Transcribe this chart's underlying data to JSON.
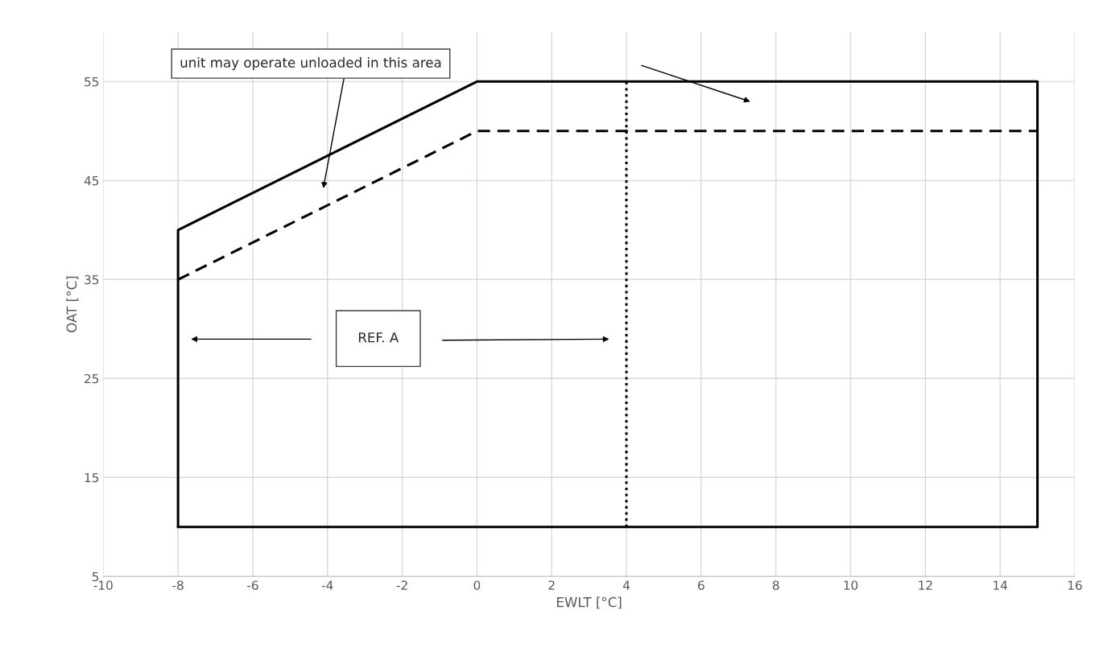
{
  "chart_data": {
    "type": "line",
    "xlabel": "EWLT [°C]",
    "ylabel": "OAT [°C]",
    "series": [
      {
        "color": "#000000",
        "line_style": "solid",
        "x": [
          -8,
          -8,
          0,
          15,
          15
        ],
        "values": [
          10,
          40,
          55,
          55,
          10
        ]
      },
      {
        "color": "#000000",
        "line_style": "solid",
        "x": [
          -8,
          15
        ],
        "values": [
          10,
          10
        ]
      },
      {
        "color": "#000000",
        "line_style": "dashed",
        "x": [
          -8,
          0,
          15
        ],
        "values": [
          35,
          50,
          50
        ]
      },
      {
        "color": "#000000",
        "line_style": "dotted",
        "x": [
          4,
          4
        ],
        "values": [
          10,
          55
        ]
      }
    ],
    "annotations": [
      "unit may operate unloaded in this area",
      "REF. A"
    ],
    "xlim": [
      -10,
      16
    ],
    "xticks": [
      -10,
      -8,
      -6,
      -4,
      -2,
      0,
      2,
      4,
      6,
      8,
      10,
      12,
      14,
      16
    ],
    "ylim": [
      5,
      60
    ],
    "yticks": [
      5,
      15,
      25,
      35,
      45,
      55
    ],
    "grid": true,
    "legend": false,
    "marker": "none"
  }
}
